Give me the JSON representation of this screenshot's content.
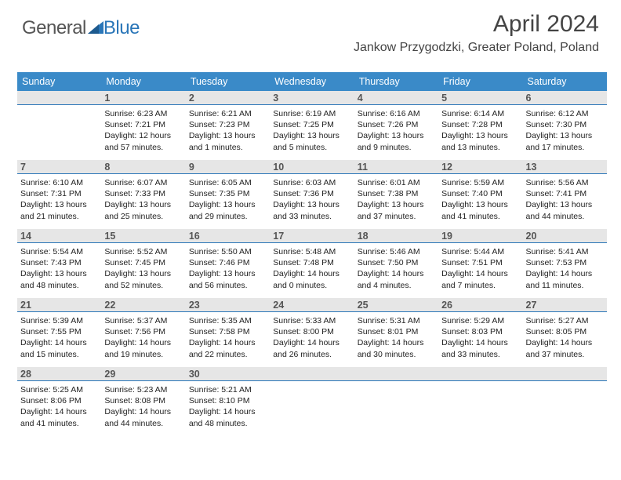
{
  "logo": {
    "part1": "General",
    "part2": "Blue"
  },
  "title": "April 2024",
  "location": "Jankow Przygodzki, Greater Poland, Poland",
  "colors": {
    "header_bg": "#3a8ac8",
    "daynum_bg": "#e6e6e6",
    "daynum_border": "#2a76b8",
    "text": "#333333",
    "logo_gray": "#555555",
    "logo_blue": "#2a76b8"
  },
  "dayNames": [
    "Sunday",
    "Monday",
    "Tuesday",
    "Wednesday",
    "Thursday",
    "Friday",
    "Saturday"
  ],
  "weeks": [
    [
      {
        "n": "",
        "sr": "",
        "ss": "",
        "dl": ""
      },
      {
        "n": "1",
        "sr": "Sunrise: 6:23 AM",
        "ss": "Sunset: 7:21 PM",
        "dl": "Daylight: 12 hours and 57 minutes."
      },
      {
        "n": "2",
        "sr": "Sunrise: 6:21 AM",
        "ss": "Sunset: 7:23 PM",
        "dl": "Daylight: 13 hours and 1 minutes."
      },
      {
        "n": "3",
        "sr": "Sunrise: 6:19 AM",
        "ss": "Sunset: 7:25 PM",
        "dl": "Daylight: 13 hours and 5 minutes."
      },
      {
        "n": "4",
        "sr": "Sunrise: 6:16 AM",
        "ss": "Sunset: 7:26 PM",
        "dl": "Daylight: 13 hours and 9 minutes."
      },
      {
        "n": "5",
        "sr": "Sunrise: 6:14 AM",
        "ss": "Sunset: 7:28 PM",
        "dl": "Daylight: 13 hours and 13 minutes."
      },
      {
        "n": "6",
        "sr": "Sunrise: 6:12 AM",
        "ss": "Sunset: 7:30 PM",
        "dl": "Daylight: 13 hours and 17 minutes."
      }
    ],
    [
      {
        "n": "7",
        "sr": "Sunrise: 6:10 AM",
        "ss": "Sunset: 7:31 PM",
        "dl": "Daylight: 13 hours and 21 minutes."
      },
      {
        "n": "8",
        "sr": "Sunrise: 6:07 AM",
        "ss": "Sunset: 7:33 PM",
        "dl": "Daylight: 13 hours and 25 minutes."
      },
      {
        "n": "9",
        "sr": "Sunrise: 6:05 AM",
        "ss": "Sunset: 7:35 PM",
        "dl": "Daylight: 13 hours and 29 minutes."
      },
      {
        "n": "10",
        "sr": "Sunrise: 6:03 AM",
        "ss": "Sunset: 7:36 PM",
        "dl": "Daylight: 13 hours and 33 minutes."
      },
      {
        "n": "11",
        "sr": "Sunrise: 6:01 AM",
        "ss": "Sunset: 7:38 PM",
        "dl": "Daylight: 13 hours and 37 minutes."
      },
      {
        "n": "12",
        "sr": "Sunrise: 5:59 AM",
        "ss": "Sunset: 7:40 PM",
        "dl": "Daylight: 13 hours and 41 minutes."
      },
      {
        "n": "13",
        "sr": "Sunrise: 5:56 AM",
        "ss": "Sunset: 7:41 PM",
        "dl": "Daylight: 13 hours and 44 minutes."
      }
    ],
    [
      {
        "n": "14",
        "sr": "Sunrise: 5:54 AM",
        "ss": "Sunset: 7:43 PM",
        "dl": "Daylight: 13 hours and 48 minutes."
      },
      {
        "n": "15",
        "sr": "Sunrise: 5:52 AM",
        "ss": "Sunset: 7:45 PM",
        "dl": "Daylight: 13 hours and 52 minutes."
      },
      {
        "n": "16",
        "sr": "Sunrise: 5:50 AM",
        "ss": "Sunset: 7:46 PM",
        "dl": "Daylight: 13 hours and 56 minutes."
      },
      {
        "n": "17",
        "sr": "Sunrise: 5:48 AM",
        "ss": "Sunset: 7:48 PM",
        "dl": "Daylight: 14 hours and 0 minutes."
      },
      {
        "n": "18",
        "sr": "Sunrise: 5:46 AM",
        "ss": "Sunset: 7:50 PM",
        "dl": "Daylight: 14 hours and 4 minutes."
      },
      {
        "n": "19",
        "sr": "Sunrise: 5:44 AM",
        "ss": "Sunset: 7:51 PM",
        "dl": "Daylight: 14 hours and 7 minutes."
      },
      {
        "n": "20",
        "sr": "Sunrise: 5:41 AM",
        "ss": "Sunset: 7:53 PM",
        "dl": "Daylight: 14 hours and 11 minutes."
      }
    ],
    [
      {
        "n": "21",
        "sr": "Sunrise: 5:39 AM",
        "ss": "Sunset: 7:55 PM",
        "dl": "Daylight: 14 hours and 15 minutes."
      },
      {
        "n": "22",
        "sr": "Sunrise: 5:37 AM",
        "ss": "Sunset: 7:56 PM",
        "dl": "Daylight: 14 hours and 19 minutes."
      },
      {
        "n": "23",
        "sr": "Sunrise: 5:35 AM",
        "ss": "Sunset: 7:58 PM",
        "dl": "Daylight: 14 hours and 22 minutes."
      },
      {
        "n": "24",
        "sr": "Sunrise: 5:33 AM",
        "ss": "Sunset: 8:00 PM",
        "dl": "Daylight: 14 hours and 26 minutes."
      },
      {
        "n": "25",
        "sr": "Sunrise: 5:31 AM",
        "ss": "Sunset: 8:01 PM",
        "dl": "Daylight: 14 hours and 30 minutes."
      },
      {
        "n": "26",
        "sr": "Sunrise: 5:29 AM",
        "ss": "Sunset: 8:03 PM",
        "dl": "Daylight: 14 hours and 33 minutes."
      },
      {
        "n": "27",
        "sr": "Sunrise: 5:27 AM",
        "ss": "Sunset: 8:05 PM",
        "dl": "Daylight: 14 hours and 37 minutes."
      }
    ],
    [
      {
        "n": "28",
        "sr": "Sunrise: 5:25 AM",
        "ss": "Sunset: 8:06 PM",
        "dl": "Daylight: 14 hours and 41 minutes."
      },
      {
        "n": "29",
        "sr": "Sunrise: 5:23 AM",
        "ss": "Sunset: 8:08 PM",
        "dl": "Daylight: 14 hours and 44 minutes."
      },
      {
        "n": "30",
        "sr": "Sunrise: 5:21 AM",
        "ss": "Sunset: 8:10 PM",
        "dl": "Daylight: 14 hours and 48 minutes."
      },
      {
        "n": "",
        "sr": "",
        "ss": "",
        "dl": ""
      },
      {
        "n": "",
        "sr": "",
        "ss": "",
        "dl": ""
      },
      {
        "n": "",
        "sr": "",
        "ss": "",
        "dl": ""
      },
      {
        "n": "",
        "sr": "",
        "ss": "",
        "dl": ""
      }
    ]
  ]
}
